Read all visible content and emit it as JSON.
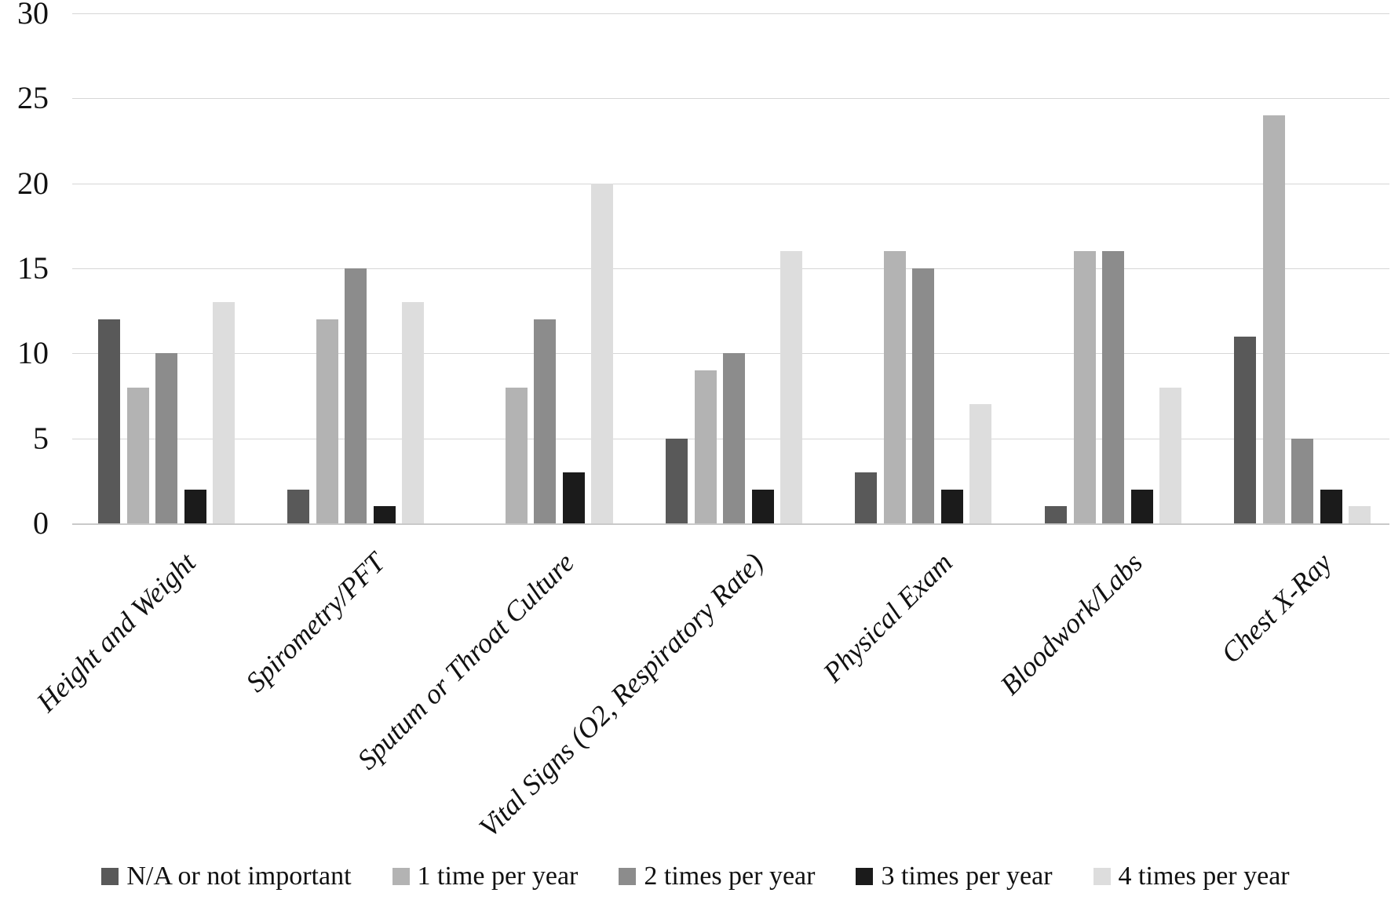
{
  "chart_data": {
    "type": "bar",
    "title": "",
    "xlabel": "",
    "ylabel": "",
    "grid": true,
    "legend_position": "bottom",
    "y_axis": {
      "min": 0,
      "max": 30,
      "step": 5,
      "ticks": [
        "0",
        "5",
        "10",
        "15",
        "20",
        "25",
        "30"
      ]
    },
    "categories": [
      "Height and Weight",
      "Spirometry/PFT",
      "Sputum or Throat Culture",
      "Vital Signs (O2, Respiratory Rate)",
      "Physical Exam",
      "Bloodwork/Labs",
      "Chest X-Ray"
    ],
    "series": [
      {
        "name": "N/A or not important",
        "color": "#595959",
        "values": [
          12,
          2,
          0,
          5,
          3,
          1,
          11
        ]
      },
      {
        "name": "1 time per year",
        "color": "#b3b3b3",
        "values": [
          8,
          12,
          8,
          9,
          16,
          16,
          24
        ]
      },
      {
        "name": "2 times per year",
        "color": "#8c8c8c",
        "values": [
          10,
          15,
          12,
          10,
          15,
          16,
          5
        ]
      },
      {
        "name": "3 times per year",
        "color": "#1b1b1b",
        "values": [
          2,
          1,
          3,
          2,
          2,
          2,
          2
        ]
      },
      {
        "name": "4 times per year",
        "color": "#dddddd",
        "values": [
          13,
          13,
          20,
          16,
          7,
          8,
          1
        ]
      }
    ]
  },
  "legend": {
    "items": [
      "N/A or not important",
      "1 time per year",
      "2 times per year",
      "3 times per year",
      "4 times per year"
    ]
  }
}
